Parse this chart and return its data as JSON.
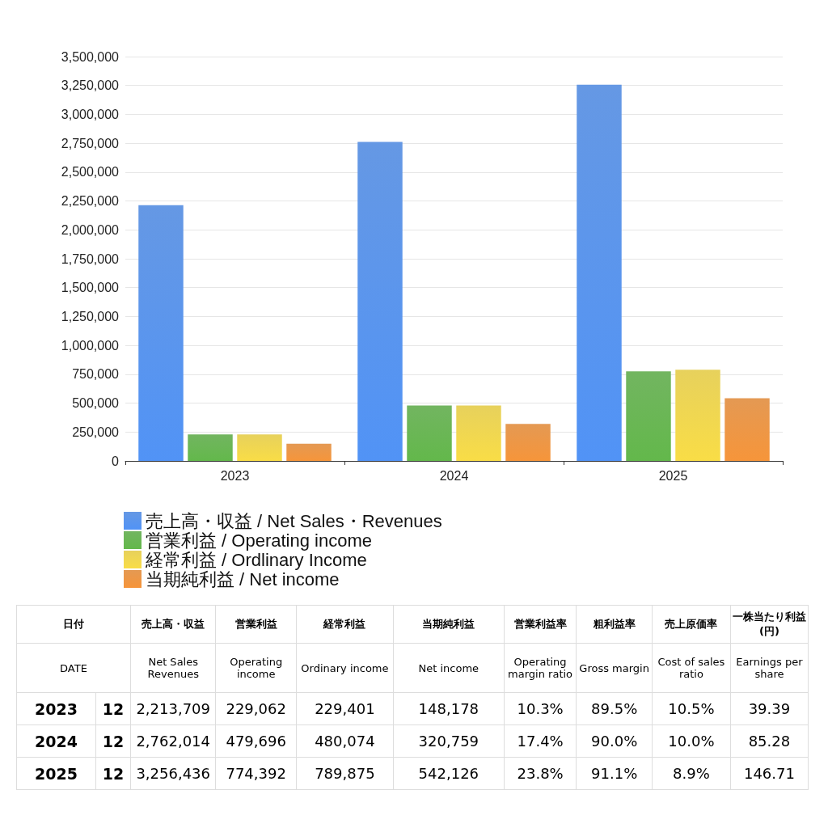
{
  "chart_data": {
    "type": "bar",
    "categories": [
      "2023",
      "2024",
      "2025"
    ],
    "series": [
      {
        "name": "売上高・収益 / Net Sales・Revenues",
        "color": "#4a86e0",
        "values": [
          2213709,
          2762014,
          3256436
        ]
      },
      {
        "name": "営業利益 / Operating income",
        "color": "#5aa845",
        "values": [
          229062,
          479696,
          774392
        ]
      },
      {
        "name": "経常利益 / Ordlinary Income",
        "color": "#e3c940",
        "values": [
          229401,
          480074,
          789875
        ]
      },
      {
        "name": "当期純利益 / Net income",
        "color": "#e08835",
        "values": [
          148178,
          320759,
          542126
        ]
      }
    ],
    "ylim": [
      0,
      3500000
    ],
    "yticks": [
      0,
      {
        "value": 250000,
        "label": "250,000"
      },
      {
        "value": 500000,
        "label": "500,000"
      },
      {
        "value": 750000,
        "label": "750,000"
      },
      {
        "value": 1000000,
        "label": "1,000,000"
      },
      {
        "value": 1250000,
        "label": "1,250,000"
      },
      {
        "value": 1500000,
        "label": "1,500,000"
      },
      {
        "value": 1750000,
        "label": "1,750,000"
      },
      {
        "value": 2000000,
        "label": "2,000,000"
      },
      {
        "value": 2250000,
        "label": "2,250,000"
      },
      {
        "value": 2500000,
        "label": "2,500,000"
      },
      {
        "value": 2750000,
        "label": "2,750,000"
      },
      {
        "value": 3000000,
        "label": "3,000,000"
      },
      {
        "value": 3250000,
        "label": "3,250,000"
      },
      {
        "value": 3500000,
        "label": "3,500,000"
      }
    ],
    "grid": "y",
    "legend": "bottom",
    "annotations": [
      "日付",
      "売上高・収益",
      "営業利益",
      "経常利益",
      "当期純利益",
      "営業利益率",
      "粗利益率",
      "売上原価率",
      "一株当たり利益(円)",
      "DATE",
      "Net Sales Revenues",
      "Operating income",
      "Ordinary income",
      "Net income",
      "Operating margin ratio",
      "Gross margin",
      "Cost of sales ratio",
      "Earnings per share",
      "12",
      "2,213,709",
      "229,062",
      "229,401",
      "148,178",
      "10.3%",
      "89.5%",
      "10.5%",
      "39.39",
      "12",
      "2,762,014",
      "479,696",
      "480,074",
      "320,759",
      "17.4%",
      "90.0%",
      "10.0%",
      "85.28",
      "12",
      "3,256,436",
      "774,392",
      "789,875",
      "542,126",
      "23.8%",
      "91.1%",
      "8.9%",
      "146.71"
    ]
  }
}
